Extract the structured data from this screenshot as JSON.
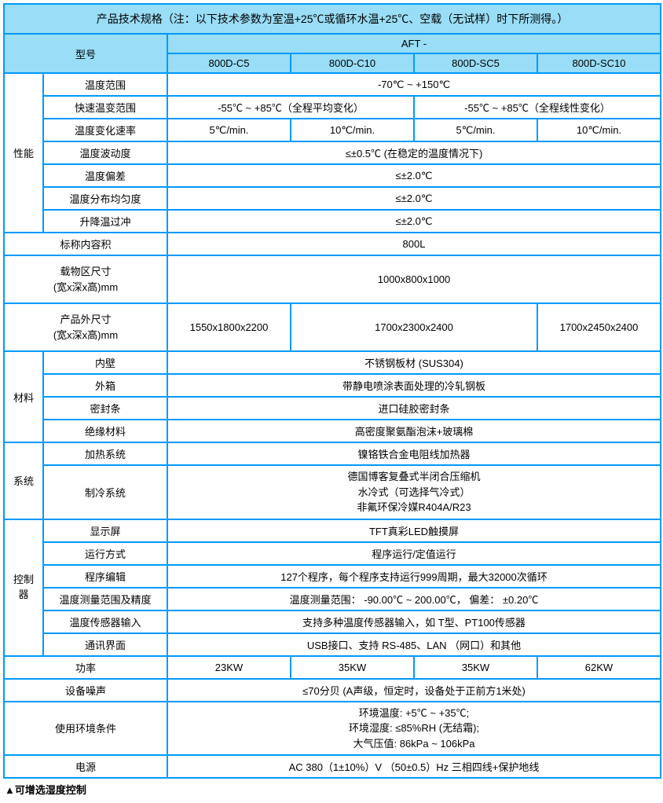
{
  "colors": {
    "border": "#0099ff",
    "header_bg": "#99ddf6",
    "cell_bg": "#ffffff",
    "text": "#000000"
  },
  "title": "产品技术规格（注：以下技术参数为室温+25℃或循环水温+25℃、空载（无试样）时下所测得。）",
  "model_label": "型号",
  "model_prefix": "AFT -",
  "models": [
    "800D-C5",
    "800D-C10",
    "800D-SC5",
    "800D-SC10"
  ],
  "perf": {
    "group": "性能",
    "temp_range": {
      "label": "温度范围",
      "value": "-70℃ ~ +150℃"
    },
    "fast_change_range": {
      "label": "快速温变范围",
      "left": "-55℃ ~ +85℃（全程平均变化）",
      "right": "-55℃ ~ +85℃（全程线性变化）"
    },
    "change_rate": {
      "label": "温度变化速率",
      "values": [
        "5℃/min.",
        "10℃/min.",
        "5℃/min.",
        "10℃/min."
      ]
    },
    "fluctuation": {
      "label": "温度波动度",
      "value": "≤±0.5℃ (在稳定的温度情况下)"
    },
    "deviation": {
      "label": "温度偏差",
      "value": "≤±2.0℃"
    },
    "uniformity": {
      "label": "温度分布均匀度",
      "value": "≤±2.0℃"
    },
    "overshoot": {
      "label": "升降温过冲",
      "value": "≤±2.0℃"
    }
  },
  "nominal_volume": {
    "label": "标称内容积",
    "value": "800L"
  },
  "load_size": {
    "label": "载物区尺寸\n(宽x深x高)mm",
    "value": "1000x800x1000"
  },
  "ext_size": {
    "label": "产品外尺寸\n(宽x深x高)mm",
    "v1": "1550x1800x2200",
    "v2": "1700x2300x2400",
    "v3": "1700x2450x2400"
  },
  "material": {
    "group": "材料",
    "inner": {
      "label": "内壁",
      "value": "不锈钢板材 (SUS304)"
    },
    "outer": {
      "label": "外箱",
      "value": "带静电喷涂表面处理的冷轧钢板"
    },
    "seal": {
      "label": "密封条",
      "value": "进口硅胶密封条"
    },
    "insulation": {
      "label": "绝缘材料",
      "value": "高密度聚氨酯泡沫+玻璃棉"
    }
  },
  "system": {
    "group": "系统",
    "heating": {
      "label": "加热系统",
      "value": "镍铬铁合金电阻线加热器"
    },
    "cooling": {
      "label": "制冷系统",
      "line1": "德国博客复叠式半闭合压缩机",
      "line2": "水冷式（可选择气冷式）",
      "line3": "非氟环保冷媒R404A/R23"
    }
  },
  "controller": {
    "group": "控制器",
    "display": {
      "label": "显示屏",
      "value": "TFT真彩LED触摸屏"
    },
    "run_mode": {
      "label": "运行方式",
      "value": "程序运行/定值运行"
    },
    "program": {
      "label": "程序编辑",
      "value": "127个程序，每个程序支持运行999周期，最大32000次循环"
    },
    "accuracy": {
      "label": "温度测量范围及精度",
      "value": "温度测量范围： -90.00℃ ~ 200.00℃， 偏差： ±0.20℃"
    },
    "sensor": {
      "label": "温度传感器输入",
      "value": "支持多种温度传感器输入，如 T型、PT100传感器"
    },
    "comm": {
      "label": "通讯界面",
      "value": "USB接口、支持 RS-485、LAN （网口）和其他"
    }
  },
  "power": {
    "label": "功率",
    "values": [
      "23KW",
      "35KW",
      "35KW",
      "62KW"
    ]
  },
  "noise": {
    "label": "设备噪声",
    "value": "≤70分贝 (A声级，恒定时，设备处于正前方1米处)"
  },
  "env": {
    "label": "使用环境条件",
    "line1": "环境温度: +5℃ ~ +35℃;",
    "line2": "环境湿度: ≤85%RH (无结霜);",
    "line3": "大气压值: 86kPa ~ 106kPa"
  },
  "supply": {
    "label": "电源",
    "value": "AC 380（1±10%）V （50±0.5）Hz 三相四线+保护地线"
  },
  "footer": "▲可增选湿度控制"
}
